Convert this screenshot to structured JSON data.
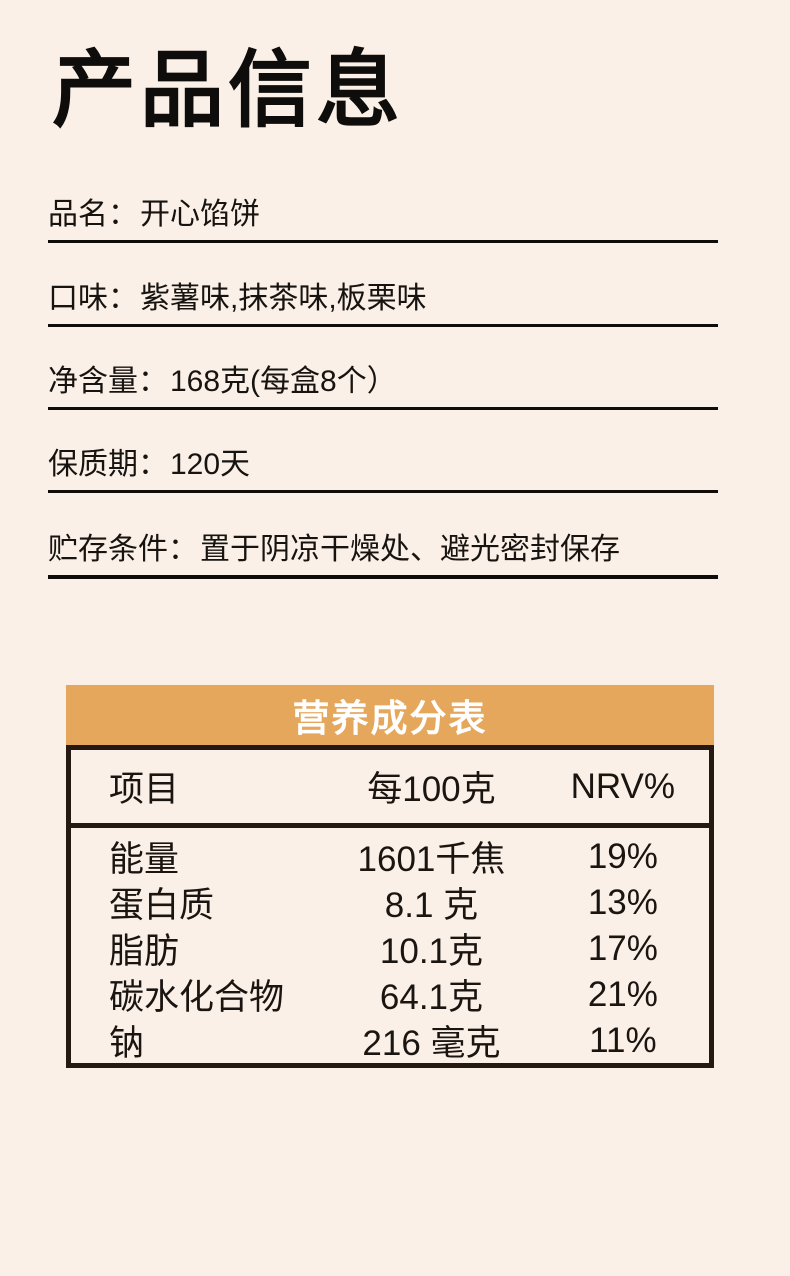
{
  "page": {
    "title": "产品信息",
    "background_color": "#faf0e7",
    "text_color": "#171310",
    "accent_color": "#e5a75c"
  },
  "fields": [
    {
      "label": "品名：",
      "value": "开心馅饼"
    },
    {
      "label": "口味：",
      "value": "紫薯味,抹茶味,板栗味"
    },
    {
      "label": "净含量：",
      "value": "168克(每盒8个）"
    },
    {
      "label": "保质期：",
      "value": "120天"
    },
    {
      "label": "贮存条件：",
      "value": "置于阴凉干燥处、避光密封保存"
    }
  ],
  "nutrition": {
    "title": "营养成分表",
    "columns": [
      "项目",
      "每100克",
      "NRV%"
    ],
    "rows": [
      {
        "item": "能量",
        "per100g": "1601千焦",
        "nrv": "19%"
      },
      {
        "item": "蛋白质",
        "per100g": "8.1 克",
        "nrv": "13%"
      },
      {
        "item": "脂肪",
        "per100g": "10.1克",
        "nrv": "17%"
      },
      {
        "item": "碳水化合物",
        "per100g": "64.1克",
        "nrv": "21%"
      },
      {
        "item": "钠",
        "per100g": "216 毫克",
        "nrv": "11%"
      }
    ]
  }
}
